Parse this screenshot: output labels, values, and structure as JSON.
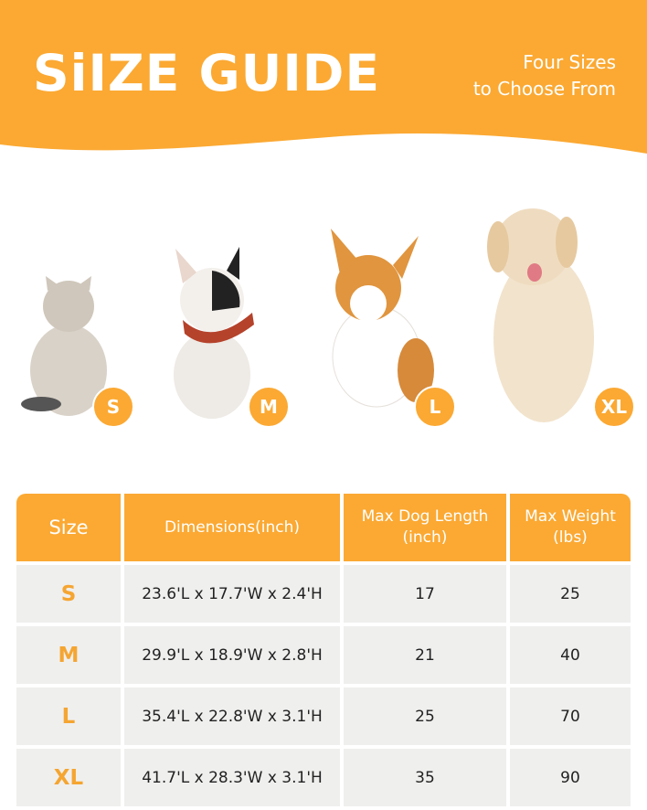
{
  "header": {
    "title": "SiIZE GUIDE",
    "subtitle_line1": "Four Sizes",
    "subtitle_line2": "to Choose From"
  },
  "colors": {
    "accent": "#FBA933",
    "row_bg": "#efefee",
    "size_text": "#F5A531"
  },
  "pets": [
    {
      "animal": "cat",
      "badge": "S"
    },
    {
      "animal": "french-bulldog",
      "badge": "M"
    },
    {
      "animal": "corgi",
      "badge": "L"
    },
    {
      "animal": "golden-retriever",
      "badge": "XL"
    }
  ],
  "table": {
    "headers": [
      "Size",
      "Dimensions(inch)",
      "Max Dog Length (inch)",
      "Max Weight (lbs)"
    ],
    "rows": [
      [
        "S",
        "23.6'L x 17.7'W x 2.4'H",
        "17",
        "25"
      ],
      [
        "M",
        "29.9'L x 18.9'W x 2.8'H",
        "21",
        "40"
      ],
      [
        "L",
        "35.4'L x 22.8'W x 3.1'H",
        "25",
        "70"
      ],
      [
        "XL",
        "41.7'L x 28.3'W x 3.1'H",
        "35",
        "90"
      ]
    ]
  }
}
